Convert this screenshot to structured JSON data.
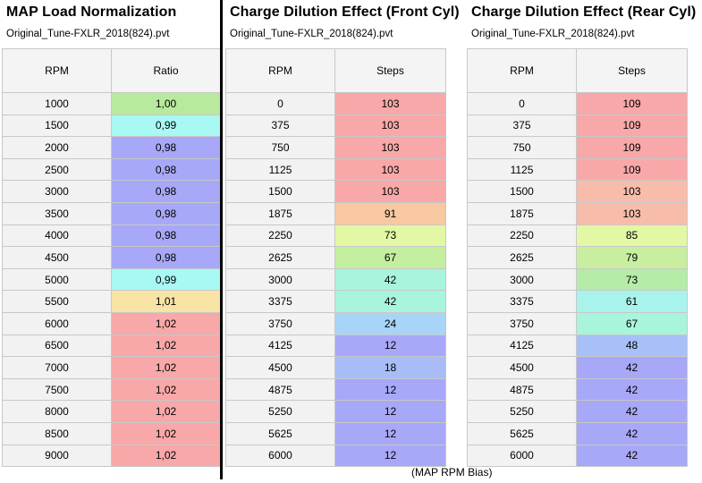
{
  "panels": [
    {
      "title": "MAP Load Normalization",
      "file": "Original_Tune-FXLR_2018(824).pvt",
      "col1": "RPM",
      "col2": "Ratio",
      "rows": [
        {
          "rpm": "1000",
          "val": "1,00",
          "color": "#b8ea9e"
        },
        {
          "rpm": "1500",
          "val": "0,99",
          "color": "#a8f8f4"
        },
        {
          "rpm": "2000",
          "val": "0,98",
          "color": "#a8a8f8"
        },
        {
          "rpm": "2500",
          "val": "0,98",
          "color": "#a8a8f8"
        },
        {
          "rpm": "3000",
          "val": "0,98",
          "color": "#a8a8f8"
        },
        {
          "rpm": "3500",
          "val": "0,98",
          "color": "#a8a8f8"
        },
        {
          "rpm": "4000",
          "val": "0,98",
          "color": "#a8a8f8"
        },
        {
          "rpm": "4500",
          "val": "0,98",
          "color": "#a8a8f8"
        },
        {
          "rpm": "5000",
          "val": "0,99",
          "color": "#a8f8f4"
        },
        {
          "rpm": "5500",
          "val": "1,01",
          "color": "#f8e4a4"
        },
        {
          "rpm": "6000",
          "val": "1,02",
          "color": "#f8a8a8"
        },
        {
          "rpm": "6500",
          "val": "1,02",
          "color": "#f8a8a8"
        },
        {
          "rpm": "7000",
          "val": "1,02",
          "color": "#f8a8a8"
        },
        {
          "rpm": "7500",
          "val": "1,02",
          "color": "#f8a8a8"
        },
        {
          "rpm": "8000",
          "val": "1,02",
          "color": "#f8a8a8"
        },
        {
          "rpm": "8500",
          "val": "1,02",
          "color": "#f8a8a8"
        },
        {
          "rpm": "9000",
          "val": "1,02",
          "color": "#f8a8a8"
        }
      ]
    },
    {
      "title": "Charge Dilution Effect (Front Cyl)",
      "file": "Original_Tune-FXLR_2018(824).pvt",
      "col1": "RPM",
      "col2": "Steps",
      "rows": [
        {
          "rpm": "0",
          "val": "103",
          "color": "#f8a8a8"
        },
        {
          "rpm": "375",
          "val": "103",
          "color": "#f8a8a8"
        },
        {
          "rpm": "750",
          "val": "103",
          "color": "#f8a8a8"
        },
        {
          "rpm": "1125",
          "val": "103",
          "color": "#f8a8a8"
        },
        {
          "rpm": "1500",
          "val": "103",
          "color": "#f8a8a8"
        },
        {
          "rpm": "1875",
          "val": "91",
          "color": "#f8c8a0"
        },
        {
          "rpm": "2250",
          "val": "73",
          "color": "#e2f8a4"
        },
        {
          "rpm": "2625",
          "val": "67",
          "color": "#c4eea0"
        },
        {
          "rpm": "3000",
          "val": "42",
          "color": "#a8f4dc"
        },
        {
          "rpm": "3375",
          "val": "42",
          "color": "#a8f4dc"
        },
        {
          "rpm": "3750",
          "val": "24",
          "color": "#a8d4f8"
        },
        {
          "rpm": "4125",
          "val": "12",
          "color": "#a8a8f8"
        },
        {
          "rpm": "4500",
          "val": "18",
          "color": "#a8bcf8"
        },
        {
          "rpm": "4875",
          "val": "12",
          "color": "#a8a8f8"
        },
        {
          "rpm": "5250",
          "val": "12",
          "color": "#a8a8f8"
        },
        {
          "rpm": "5625",
          "val": "12",
          "color": "#a8a8f8"
        },
        {
          "rpm": "6000",
          "val": "12",
          "color": "#a8a8f8"
        }
      ]
    },
    {
      "title": "Charge Dilution Effect (Rear Cyl)",
      "file": "Original_Tune-FXLR_2018(824).pvt",
      "col1": "RPM",
      "col2": "Steps",
      "rows": [
        {
          "rpm": "0",
          "val": "109",
          "color": "#f8a8a8"
        },
        {
          "rpm": "375",
          "val": "109",
          "color": "#f8a8a8"
        },
        {
          "rpm": "750",
          "val": "109",
          "color": "#f8a8a8"
        },
        {
          "rpm": "1125",
          "val": "109",
          "color": "#f8a8a8"
        },
        {
          "rpm": "1500",
          "val": "103",
          "color": "#f8bcaa"
        },
        {
          "rpm": "1875",
          "val": "103",
          "color": "#f8bcaa"
        },
        {
          "rpm": "2250",
          "val": "85",
          "color": "#e2f8a4"
        },
        {
          "rpm": "2625",
          "val": "79",
          "color": "#c8eea0"
        },
        {
          "rpm": "3000",
          "val": "73",
          "color": "#b4eca8"
        },
        {
          "rpm": "3375",
          "val": "61",
          "color": "#a8f4ec"
        },
        {
          "rpm": "3750",
          "val": "67",
          "color": "#a8f4dc"
        },
        {
          "rpm": "4125",
          "val": "48",
          "color": "#a8c0f8"
        },
        {
          "rpm": "4500",
          "val": "42",
          "color": "#a8a8f8"
        },
        {
          "rpm": "4875",
          "val": "42",
          "color": "#a8a8f8"
        },
        {
          "rpm": "5250",
          "val": "42",
          "color": "#a8a8f8"
        },
        {
          "rpm": "5625",
          "val": "42",
          "color": "#a8a8f8"
        },
        {
          "rpm": "6000",
          "val": "42",
          "color": "#a8a8f8"
        }
      ]
    }
  ],
  "caption": "(MAP RPM Bias)"
}
